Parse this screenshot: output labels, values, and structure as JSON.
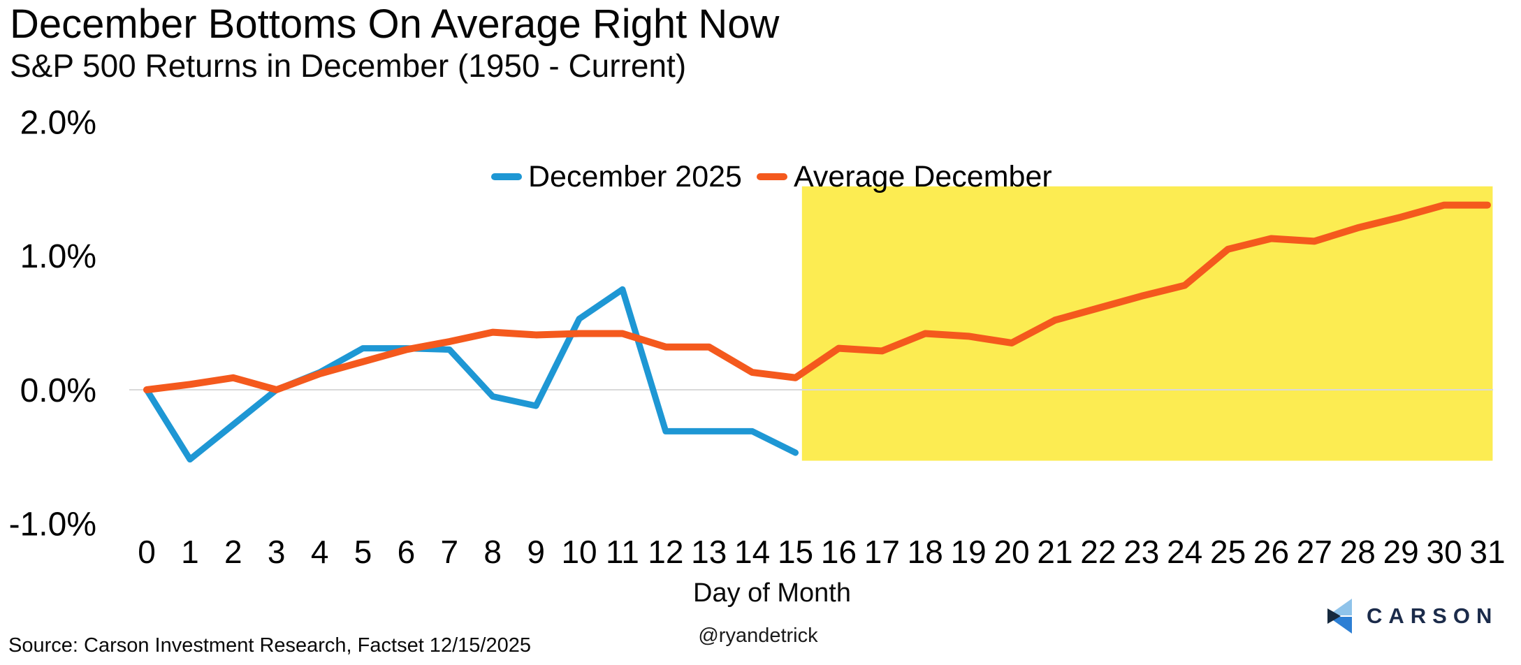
{
  "chart_data": {
    "type": "line",
    "title": "December Bottoms On Average Right Now",
    "subtitle": "S&P 500 Returns in December (1950 - Current)",
    "xlabel": "Day of Month",
    "x_ticks": [
      "0",
      "1",
      "2",
      "3",
      "4",
      "5",
      "6",
      "7",
      "8",
      "9",
      "10",
      "11",
      "12",
      "13",
      "14",
      "15",
      "16",
      "17",
      "18",
      "19",
      "20",
      "21",
      "22",
      "23",
      "24",
      "25",
      "26",
      "27",
      "28",
      "29",
      "30",
      "31"
    ],
    "y_axis": {
      "tick_labels": [
        "2.0%",
        "1.0%",
        "0.0%",
        "-1.0%"
      ],
      "tick_values": [
        2.0,
        1.0,
        0.0,
        -1.0
      ],
      "unit": "%"
    },
    "xlim": [
      0,
      31
    ],
    "grid": "zero-line-only",
    "legend_position": "top-center",
    "series": [
      {
        "name": "December 2025",
        "color": "#1e97d4",
        "x": [
          0,
          1,
          2,
          3,
          4,
          5,
          6,
          7,
          8,
          9,
          10,
          11,
          12,
          13,
          14,
          15
        ],
        "values": [
          0.0,
          -0.52,
          -0.26,
          0.0,
          0.13,
          0.31,
          0.31,
          0.3,
          -0.05,
          -0.12,
          0.53,
          0.75,
          -0.31,
          -0.31,
          -0.31,
          -0.47
        ]
      },
      {
        "name": "Average December",
        "color": "#f4591d",
        "x": [
          0,
          1,
          2,
          3,
          4,
          5,
          6,
          7,
          8,
          9,
          10,
          11,
          12,
          13,
          14,
          15,
          16,
          17,
          18,
          19,
          20,
          21,
          22,
          23,
          24,
          25,
          26,
          27,
          28,
          29,
          30,
          31
        ],
        "values": [
          0.0,
          0.04,
          0.09,
          0.0,
          0.12,
          0.21,
          0.3,
          0.36,
          0.43,
          0.41,
          0.42,
          0.42,
          0.32,
          0.32,
          0.13,
          0.09,
          0.31,
          0.29,
          0.42,
          0.4,
          0.35,
          0.52,
          0.61,
          0.7,
          0.78,
          1.05,
          1.13,
          1.11,
          1.21,
          1.29,
          1.38,
          1.38
        ]
      }
    ],
    "highlight_region": {
      "color": "#fcec52",
      "x_start": 15.15,
      "x_end": 31.12,
      "y_top": 1.52,
      "y_bottom": -0.53
    }
  },
  "colors": {
    "background": "#ffffff",
    "gridline": "#d9d9d9",
    "logo_navy": "#1b2b4a",
    "logo_light_blue": "#8fc3ea",
    "logo_mid_blue": "#2d7fd4",
    "logo_dark_notch": "#16293e"
  },
  "footer": {
    "source": "Source: Carson Investment Research, Factset 12/15/2025",
    "attribution": "@ryandetrick",
    "brand": "CARSON"
  }
}
